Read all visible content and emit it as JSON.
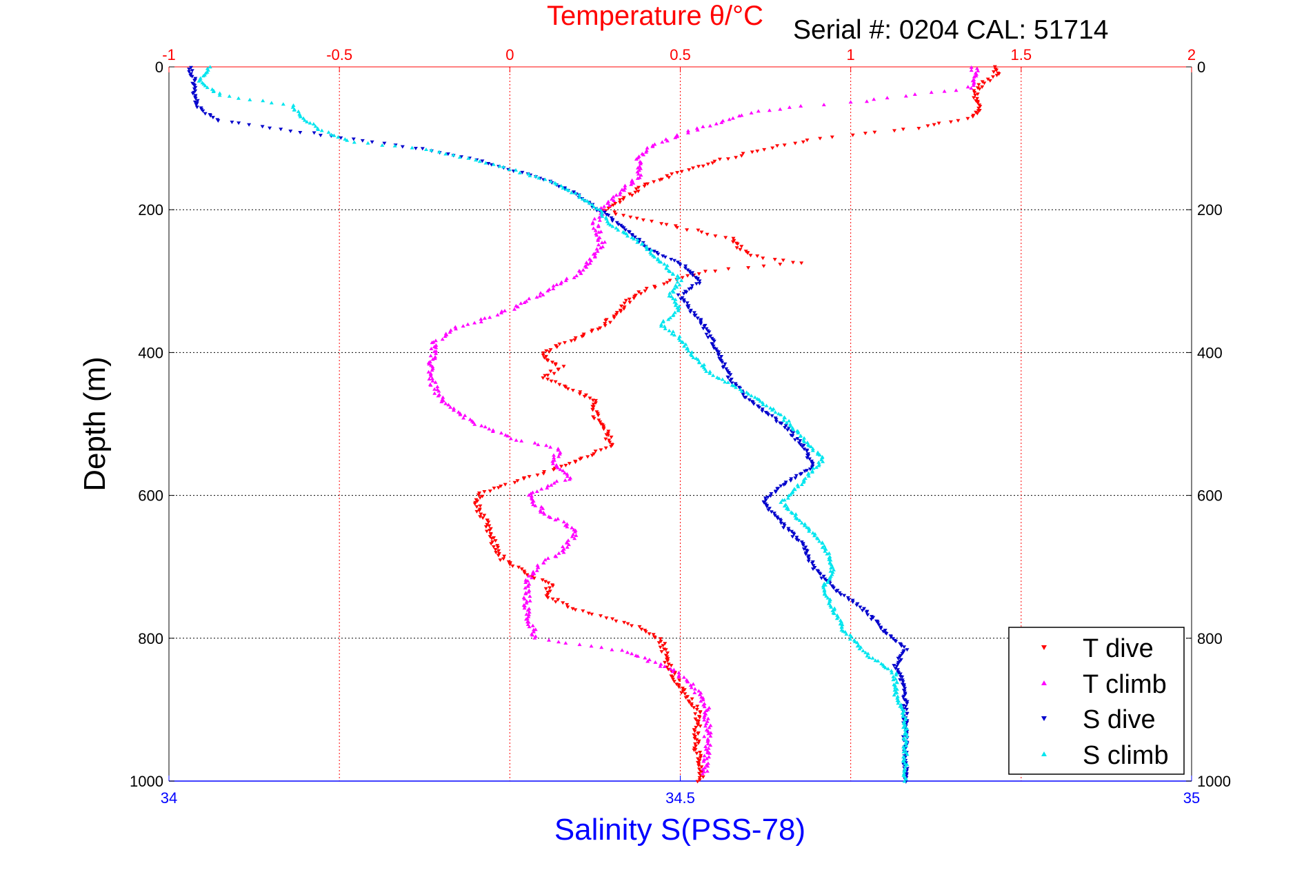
{
  "header": {
    "top_axis_title": "Temperature θ/°C",
    "serial_text": "Serial #: 0204  CAL: 51714"
  },
  "axes": {
    "ylabel": "Depth (m)",
    "xlabel_bottom": "Salinity S(PSS-78)",
    "top_tick_labels": [
      "-1",
      "-0.5",
      "0",
      "0.5",
      "1",
      "1.5",
      "2"
    ],
    "bottom_tick_labels": [
      "34",
      "34.5",
      "35"
    ],
    "depth_tick_labels": [
      "0",
      "200",
      "400",
      "600",
      "800",
      "1000"
    ]
  },
  "legend": {
    "items": [
      {
        "label": "T dive",
        "color": "#ff0000"
      },
      {
        "label": "T climb",
        "color": "#ff00ff"
      },
      {
        "label": "S dive",
        "color": "#0000cc"
      },
      {
        "label": "S climb",
        "color": "#00e5ee"
      }
    ]
  },
  "chart_data": {
    "type": "scatter",
    "title": "Temperature θ/°C",
    "subtitle": "Serial #: 0204  CAL: 51714",
    "ylabel": "Depth (m)",
    "xlabel_top": "Temperature θ/°C",
    "xlabel_bottom": "Salinity S(PSS-78)",
    "y_range": [
      0,
      1000
    ],
    "y_reversed": true,
    "x_top_range": [
      -1,
      2
    ],
    "x_bottom_range": [
      34,
      35
    ],
    "grid": true,
    "legend_placement": "bottom-right",
    "series": [
      {
        "name": "T dive",
        "axis": "temperature",
        "color": "#ff0000",
        "marker": "triangle-down",
        "points": [
          [
            1.42,
            0
          ],
          [
            1.43,
            10
          ],
          [
            1.38,
            25
          ],
          [
            1.36,
            40
          ],
          [
            1.38,
            60
          ],
          [
            1.36,
            70
          ],
          [
            1.2,
            85
          ],
          [
            1.0,
            95
          ],
          [
            0.9,
            100
          ],
          [
            0.75,
            115
          ],
          [
            0.62,
            130
          ],
          [
            0.55,
            140
          ],
          [
            0.48,
            150
          ],
          [
            0.4,
            165
          ],
          [
            0.35,
            180
          ],
          [
            0.3,
            195
          ],
          [
            0.27,
            200
          ],
          [
            0.35,
            210
          ],
          [
            0.5,
            225
          ],
          [
            0.65,
            240
          ],
          [
            0.68,
            255
          ],
          [
            0.72,
            265
          ],
          [
            0.85,
            275
          ],
          [
            0.6,
            285
          ],
          [
            0.5,
            295
          ],
          [
            0.38,
            315
          ],
          [
            0.32,
            340
          ],
          [
            0.28,
            360
          ],
          [
            0.2,
            380
          ],
          [
            0.12,
            395
          ],
          [
            0.1,
            405
          ],
          [
            0.15,
            420
          ],
          [
            0.1,
            435
          ],
          [
            0.2,
            455
          ],
          [
            0.25,
            470
          ],
          [
            0.25,
            490
          ],
          [
            0.28,
            510
          ],
          [
            0.3,
            530
          ],
          [
            0.23,
            545
          ],
          [
            0.15,
            560
          ],
          [
            0.05,
            575
          ],
          [
            -0.08,
            595
          ],
          [
            -0.1,
            610
          ],
          [
            -0.07,
            640
          ],
          [
            -0.05,
            665
          ],
          [
            -0.02,
            690
          ],
          [
            0.05,
            710
          ],
          [
            0.12,
            725
          ],
          [
            0.1,
            740
          ],
          [
            0.2,
            760
          ],
          [
            0.35,
            780
          ],
          [
            0.43,
            795
          ],
          [
            0.45,
            810
          ],
          [
            0.46,
            830
          ],
          [
            0.48,
            850
          ],
          [
            0.5,
            870
          ],
          [
            0.55,
            900
          ],
          [
            0.55,
            940
          ],
          [
            0.55,
            970
          ],
          [
            0.56,
            1000
          ]
        ]
      },
      {
        "name": "T climb",
        "axis": "temperature",
        "color": "#ff00ff",
        "marker": "triangle-up",
        "points": [
          [
            1.36,
            0
          ],
          [
            1.37,
            15
          ],
          [
            1.35,
            30
          ],
          [
            1.0,
            50
          ],
          [
            0.85,
            55
          ],
          [
            0.7,
            65
          ],
          [
            0.6,
            80
          ],
          [
            0.5,
            95
          ],
          [
            0.42,
            110
          ],
          [
            0.38,
            130
          ],
          [
            0.38,
            150
          ],
          [
            0.35,
            165
          ],
          [
            0.3,
            185
          ],
          [
            0.27,
            200
          ],
          [
            0.25,
            220
          ],
          [
            0.27,
            245
          ],
          [
            0.25,
            265
          ],
          [
            0.2,
            290
          ],
          [
            0.12,
            310
          ],
          [
            0.05,
            330
          ],
          [
            -0.05,
            350
          ],
          [
            -0.15,
            365
          ],
          [
            -0.22,
            385
          ],
          [
            -0.23,
            410
          ],
          [
            -0.23,
            440
          ],
          [
            -0.2,
            470
          ],
          [
            -0.1,
            500
          ],
          [
            0.0,
            520
          ],
          [
            0.15,
            535
          ],
          [
            0.12,
            555
          ],
          [
            0.18,
            575
          ],
          [
            0.05,
            600
          ],
          [
            0.1,
            625
          ],
          [
            0.2,
            650
          ],
          [
            0.15,
            680
          ],
          [
            0.08,
            700
          ],
          [
            0.05,
            720
          ],
          [
            0.05,
            745
          ],
          [
            0.05,
            770
          ],
          [
            0.08,
            800
          ],
          [
            0.35,
            820
          ],
          [
            0.4,
            830
          ],
          [
            0.48,
            845
          ],
          [
            0.52,
            860
          ],
          [
            0.56,
            880
          ],
          [
            0.58,
            900
          ],
          [
            0.58,
            930
          ],
          [
            0.58,
            960
          ],
          [
            0.57,
            990
          ]
        ]
      },
      {
        "name": "S dive",
        "axis": "salinity",
        "color": "#0000cc",
        "marker": "triangle-down",
        "points": [
          [
            34.02,
            0
          ],
          [
            34.025,
            20
          ],
          [
            34.025,
            40
          ],
          [
            34.03,
            60
          ],
          [
            34.05,
            75
          ],
          [
            34.1,
            85
          ],
          [
            34.15,
            95
          ],
          [
            34.2,
            105
          ],
          [
            34.25,
            115
          ],
          [
            34.3,
            130
          ],
          [
            34.35,
            150
          ],
          [
            34.38,
            165
          ],
          [
            34.4,
            180
          ],
          [
            34.42,
            200
          ],
          [
            34.45,
            230
          ],
          [
            34.47,
            255
          ],
          [
            34.5,
            275
          ],
          [
            34.52,
            300
          ],
          [
            34.5,
            320
          ],
          [
            34.51,
            340
          ],
          [
            34.52,
            355
          ],
          [
            34.53,
            380
          ],
          [
            34.54,
            410
          ],
          [
            34.55,
            440
          ],
          [
            34.57,
            470
          ],
          [
            34.6,
            500
          ],
          [
            34.62,
            530
          ],
          [
            34.63,
            560
          ],
          [
            34.6,
            585
          ],
          [
            34.58,
            610
          ],
          [
            34.6,
            640
          ],
          [
            34.62,
            670
          ],
          [
            34.63,
            700
          ],
          [
            34.65,
            730
          ],
          [
            34.68,
            760
          ],
          [
            34.7,
            790
          ],
          [
            34.72,
            815
          ],
          [
            34.71,
            840
          ],
          [
            34.72,
            870
          ],
          [
            34.72,
            900
          ],
          [
            34.72,
            940
          ],
          [
            34.72,
            970
          ],
          [
            34.72,
            1000
          ]
        ]
      },
      {
        "name": "S climb",
        "axis": "salinity",
        "color": "#00e5ee",
        "marker": "triangle-up",
        "points": [
          [
            34.04,
            0
          ],
          [
            34.03,
            20
          ],
          [
            34.05,
            40
          ],
          [
            34.12,
            55
          ],
          [
            34.13,
            70
          ],
          [
            34.15,
            90
          ],
          [
            34.18,
            105
          ],
          [
            34.25,
            115
          ],
          [
            34.3,
            130
          ],
          [
            34.35,
            150
          ],
          [
            34.38,
            165
          ],
          [
            34.4,
            180
          ],
          [
            34.42,
            200
          ],
          [
            34.43,
            220
          ],
          [
            34.46,
            245
          ],
          [
            34.48,
            270
          ],
          [
            34.5,
            300
          ],
          [
            34.49,
            320
          ],
          [
            34.5,
            340
          ],
          [
            34.48,
            360
          ],
          [
            34.5,
            380
          ],
          [
            34.51,
            400
          ],
          [
            34.53,
            430
          ],
          [
            34.57,
            460
          ],
          [
            34.6,
            490
          ],
          [
            34.62,
            520
          ],
          [
            34.64,
            550
          ],
          [
            34.62,
            580
          ],
          [
            34.6,
            610
          ],
          [
            34.62,
            640
          ],
          [
            34.64,
            670
          ],
          [
            34.65,
            700
          ],
          [
            34.64,
            730
          ],
          [
            34.65,
            760
          ],
          [
            34.66,
            790
          ],
          [
            34.68,
            820
          ],
          [
            34.71,
            850
          ],
          [
            34.71,
            880
          ],
          [
            34.72,
            910
          ],
          [
            34.72,
            950
          ],
          [
            34.72,
            980
          ],
          [
            34.72,
            1000
          ]
        ]
      }
    ]
  }
}
